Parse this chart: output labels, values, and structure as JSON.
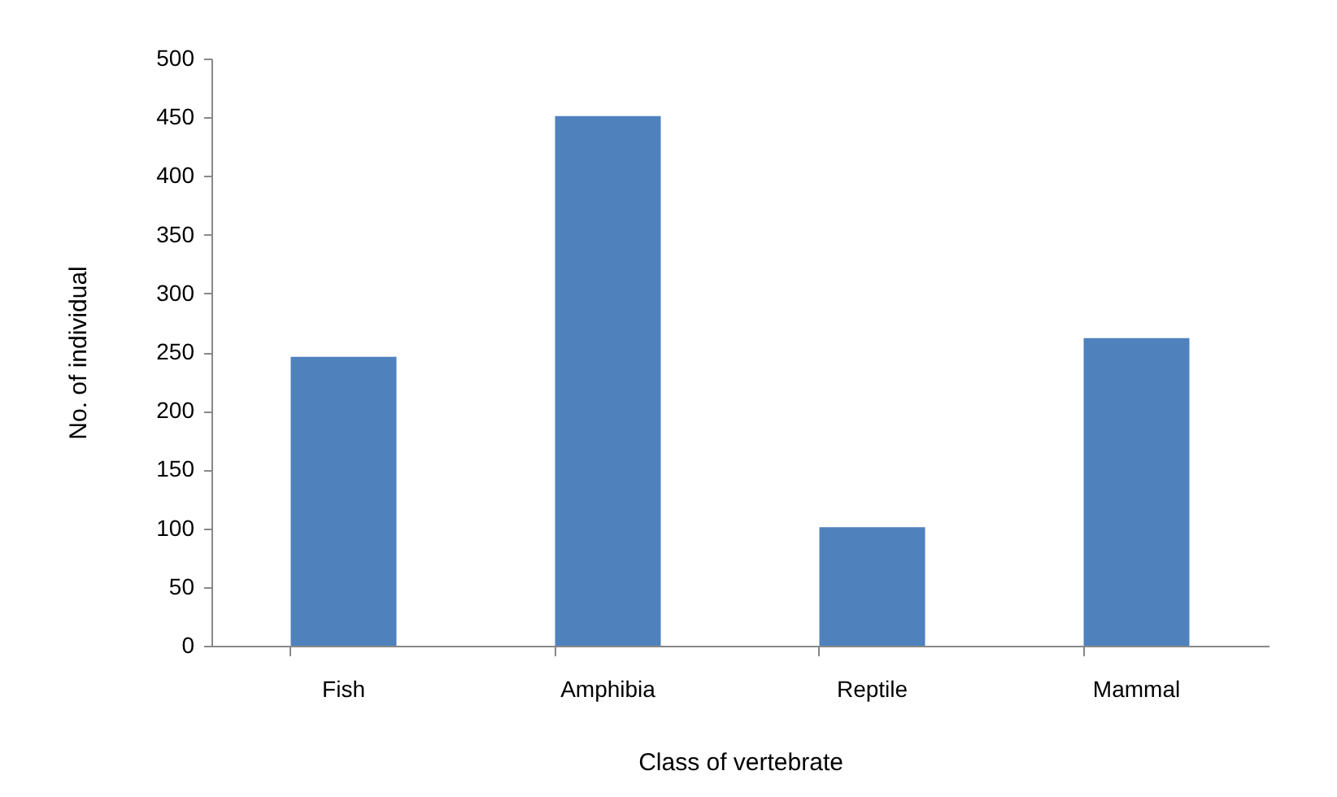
{
  "chart_data": {
    "type": "bar",
    "xlabel": "Class of vertebrate",
    "ylabel": "No. of individual",
    "categories": [
      "Fish",
      "Amphibia",
      "Reptile",
      "Mammal"
    ],
    "values": [
      246,
      451,
      101,
      262
    ],
    "color": "#4f81bd",
    "ylim": [
      0,
      500
    ],
    "yticks": [
      0,
      50,
      100,
      150,
      200,
      250,
      300,
      350,
      400,
      450,
      500
    ],
    "grid": false
  }
}
